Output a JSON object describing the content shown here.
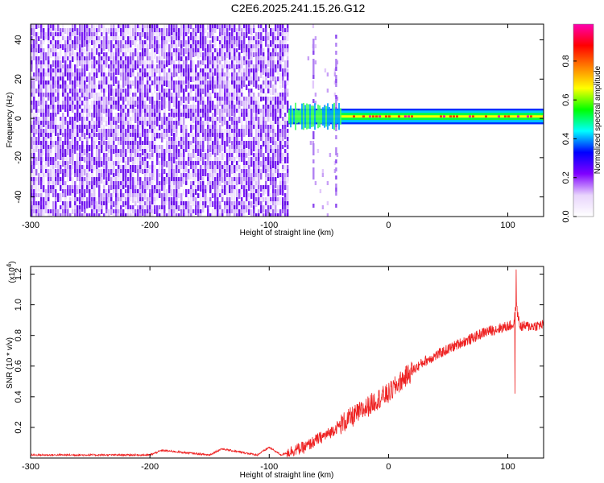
{
  "title": "C2E6.2025.241.15.26.G12",
  "chart_data": [
    {
      "type": "heatmap",
      "xlabel": "Height of straight line (km)",
      "ylabel": "Frequency (Hz)",
      "xlim": [
        -300,
        130
      ],
      "ylim": [
        -50,
        48
      ],
      "xticks": [
        "-300",
        "-200",
        "-100",
        "0",
        "100"
      ],
      "xtick_values": [
        -300,
        -200,
        -100,
        0,
        100
      ],
      "yticks": [
        "-40",
        "-20",
        "0",
        "20",
        "40"
      ],
      "ytick_values": [
        -40,
        -20,
        0,
        20,
        40
      ],
      "noise_region_x": [
        -300,
        -84
      ],
      "sparse_noise_x": [
        -68,
        -42
      ],
      "signal_start_x": -84,
      "signal_center_freq_hz": 1,
      "signal_half_width_hz": 4,
      "colorbar": {
        "label": "Normalized spectral amplitude",
        "range": [
          0,
          0.99
        ],
        "ticks": [
          "0.0",
          "0.2",
          "0.4",
          "0.6",
          "0.8"
        ],
        "tick_values": [
          0,
          0.2,
          0.4,
          0.6,
          0.8
        ],
        "colormap": [
          "#ffffff",
          "#e8d4fc",
          "#8000ff",
          "#0000ff",
          "#00ffff",
          "#00ff00",
          "#ffff00",
          "#ff8000",
          "#ff0000",
          "#ff00b0"
        ]
      }
    },
    {
      "type": "line",
      "xlabel": "Height of straight line (km)",
      "ylabel": "SNR (10 * v/v)",
      "y_multiplier": "(x10",
      "y_multiplier_exp": "4",
      "y_multiplier_close": ")",
      "xlim": [
        -300,
        130
      ],
      "ylim": [
        0,
        1.25
      ],
      "xticks": [
        "-300",
        "-200",
        "-100",
        "0",
        "100"
      ],
      "xtick_values": [
        -300,
        -200,
        -100,
        0,
        100
      ],
      "yticks": [
        "0.2",
        "0.4",
        "0.6",
        "0.8",
        "1.0",
        "1.2"
      ],
      "ytick_values": [
        0.2,
        0.4,
        0.6,
        0.8,
        1.0,
        1.2
      ],
      "line_color": "#ee2222",
      "series": [
        {
          "x": [
            -300,
            -250,
            -200,
            -190,
            -150,
            -140,
            -110,
            -100,
            -90,
            -80,
            -70,
            -60,
            -50,
            -40,
            -30,
            -20,
            -10,
            0,
            10,
            20,
            30,
            40,
            50,
            60,
            70,
            80,
            90,
            100,
            105,
            107,
            110,
            120,
            130
          ],
          "values": [
            0.02,
            0.02,
            0.02,
            0.05,
            0.02,
            0.06,
            0.02,
            0.07,
            0.02,
            0.05,
            0.07,
            0.12,
            0.16,
            0.22,
            0.27,
            0.32,
            0.38,
            0.42,
            0.5,
            0.57,
            0.63,
            0.67,
            0.71,
            0.75,
            0.78,
            0.82,
            0.84,
            0.86,
            0.87,
            1.0,
            0.86,
            0.86,
            0.87
          ],
          "spikes": [
            {
              "x": 107,
              "y": 1.23
            },
            {
              "x": 106,
              "y": 0.42
            }
          ]
        }
      ]
    }
  ]
}
